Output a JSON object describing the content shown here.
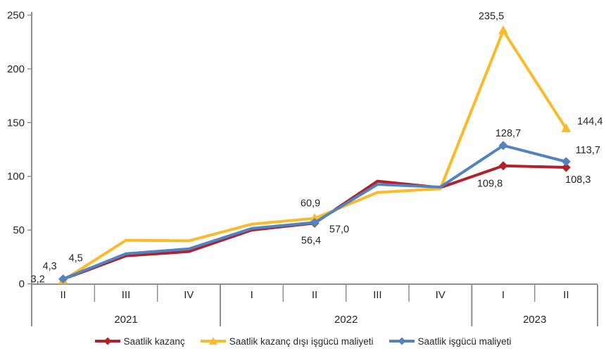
{
  "chart_data": {
    "type": "line",
    "title": "",
    "decimal_separator": ",",
    "y_axis": {
      "min": 0,
      "max": 250,
      "ticks": [
        "0",
        "50",
        "100",
        "150",
        "200",
        "250"
      ],
      "grid": false
    },
    "x_axis": {
      "quarters": [
        "II",
        "III",
        "IV",
        "I",
        "II",
        "III",
        "IV",
        "I",
        "II"
      ],
      "year_groups": [
        {
          "label": "2021",
          "count": 3
        },
        {
          "label": "2022",
          "count": 4
        },
        {
          "label": "2023",
          "count": 2
        }
      ]
    },
    "legend_position": "bottom",
    "series": [
      {
        "name": "Saatlik kazanç",
        "color": "#b3202a",
        "marker": "diamond",
        "values": [
          4.3,
          26,
          30,
          50,
          56.4,
          95.5,
          89.5,
          109.8,
          108.3
        ],
        "markers_at": [
          0,
          4,
          7,
          8
        ],
        "point_labels": [
          {
            "i": 0,
            "text": "4,3",
            "dx": -19,
            "dy": -14
          },
          {
            "i": 4,
            "text": "56,4",
            "dx": -5,
            "dy": 29
          },
          {
            "i": 7,
            "text": "109,8",
            "dx": -19,
            "dy": 30
          },
          {
            "i": 8,
            "text": "108,3",
            "dx": 17,
            "dy": 22
          }
        ]
      },
      {
        "name": "Saatlik kazanç dışı işgücü maliyeti",
        "color": "#fbba2a",
        "marker": "triangle",
        "values": [
          3.2,
          40.5,
          40,
          55.5,
          60.9,
          85,
          88.5,
          235.5,
          144.4
        ],
        "markers_at": [
          0,
          4,
          7,
          8
        ],
        "point_labels": [
          {
            "i": 0,
            "text": "3,2",
            "dx": -36,
            "dy": 3
          },
          {
            "i": 4,
            "text": "60,9",
            "dx": -6,
            "dy": -17
          },
          {
            "i": 7,
            "text": "235,5",
            "dx": -17,
            "dy": -16
          },
          {
            "i": 8,
            "text": "144,4",
            "dx": 34,
            "dy": -6
          }
        ]
      },
      {
        "name": "Saatlik işgücü maliyeti",
        "color": "#5083bf",
        "marker": "diamond",
        "values": [
          4.5,
          28,
          32.5,
          51.5,
          57.0,
          92.5,
          90,
          128.7,
          113.7
        ],
        "markers_at": [
          0,
          4,
          7,
          8
        ],
        "point_labels": [
          {
            "i": 0,
            "text": "4,5",
            "dx": 18,
            "dy": -25
          },
          {
            "i": 4,
            "text": "57,0",
            "dx": 35,
            "dy": 14
          },
          {
            "i": 7,
            "text": "128,7",
            "dx": 7,
            "dy": -13
          },
          {
            "i": 8,
            "text": "113,7",
            "dx": 31,
            "dy": -12
          }
        ]
      }
    ],
    "colors": {
      "axis": "#8f8f8f",
      "text": "#262626"
    }
  }
}
